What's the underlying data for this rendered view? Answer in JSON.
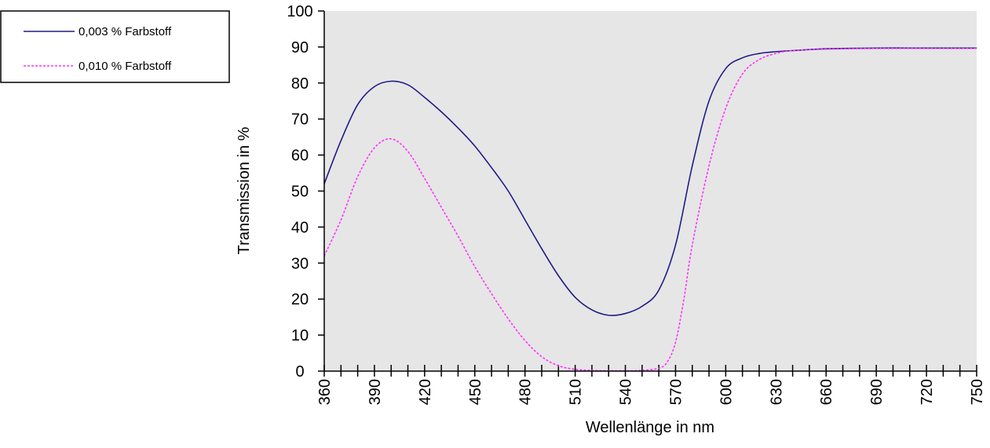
{
  "colors": {
    "plot_background": "#e6e6e6",
    "axis": "#000000",
    "series_solid": "#1f1a8a",
    "series_dashed": "#ff33ff"
  },
  "chart_data": {
    "type": "line",
    "title": "",
    "xlabel": "Wellenlänge  in nm",
    "ylabel": "Transmission in %",
    "xlim": [
      360,
      750
    ],
    "ylim": [
      0,
      100
    ],
    "grid": false,
    "legend_position": "top-left-outside",
    "x_ticks": [
      "360",
      "390",
      "420",
      "450",
      "480",
      "510",
      "540",
      "570",
      "600",
      "630",
      "660",
      "690",
      "720",
      "750"
    ],
    "y_ticks": [
      "0",
      "10",
      "20",
      "30",
      "40",
      "50",
      "60",
      "70",
      "80",
      "90",
      "100"
    ],
    "series": [
      {
        "name": "0,003 % Farbstoff",
        "style": "solid",
        "x": [
          360,
          370,
          380,
          390,
          400,
          410,
          420,
          430,
          440,
          450,
          460,
          470,
          480,
          490,
          500,
          510,
          520,
          530,
          540,
          550,
          560,
          570,
          580,
          590,
          600,
          610,
          620,
          630,
          640,
          660,
          690,
          720,
          750
        ],
        "y": [
          52,
          64,
          74,
          79,
          80.5,
          79.5,
          76,
          72,
          67.5,
          62.5,
          56.5,
          50,
          42,
          34,
          26.5,
          20.5,
          17,
          15.5,
          16,
          18,
          22.5,
          35,
          57,
          75,
          84,
          87,
          88.2,
          88.7,
          89,
          89.5,
          89.7,
          89.7,
          89.7
        ]
      },
      {
        "name": "0,010 % Farbstoff",
        "style": "dashed",
        "x": [
          360,
          370,
          380,
          390,
          400,
          410,
          420,
          430,
          440,
          450,
          460,
          470,
          480,
          490,
          500,
          510,
          520,
          530,
          540,
          550,
          560,
          565,
          570,
          575,
          580,
          590,
          600,
          610,
          620,
          630,
          640,
          660,
          690,
          720,
          750
        ],
        "y": [
          32,
          42,
          54,
          62,
          64.5,
          61,
          53.5,
          45.5,
          37.5,
          29,
          21.5,
          14.5,
          8.5,
          4,
          1.5,
          0.5,
          0.2,
          0.1,
          0.1,
          0.2,
          0.8,
          2.5,
          8,
          20,
          35,
          57,
          73,
          82.5,
          86.5,
          88.2,
          89,
          89.4,
          89.6,
          89.6,
          89.6
        ]
      }
    ]
  }
}
